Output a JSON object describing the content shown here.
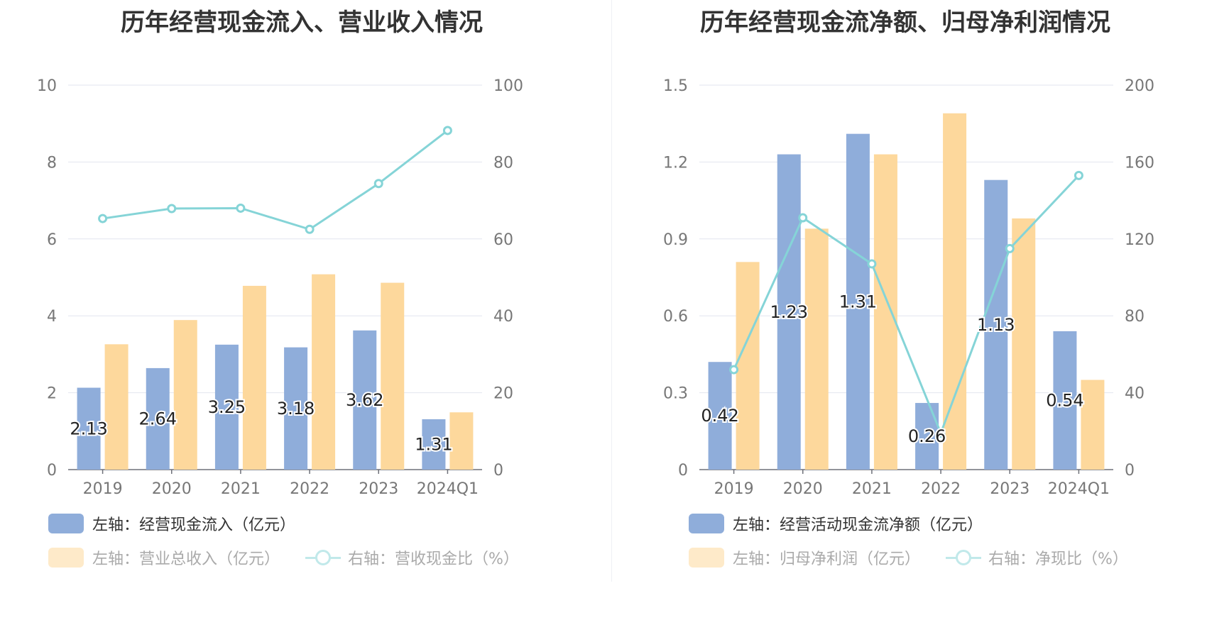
{
  "chart_data": [
    {
      "type": "bar",
      "title": "历年经营现金流入、营业收入情况",
      "categories": [
        "2019",
        "2020",
        "2021",
        "2022",
        "2023",
        "2024Q1"
      ],
      "left_axis": {
        "ylim": [
          0,
          10
        ],
        "ticks": [
          "0",
          "2",
          "4",
          "6",
          "8",
          "10"
        ]
      },
      "right_axis": {
        "ylim": [
          0,
          100
        ],
        "ticks": [
          "0",
          "20",
          "40",
          "60",
          "80",
          "100"
        ]
      },
      "grid": true,
      "legend_position": "bottom-left",
      "series": [
        {
          "name": "左轴：经营现金流入（亿元）",
          "kind": "bar",
          "axis": "left",
          "color": "#8fadda",
          "values": [
            2.13,
            2.64,
            3.25,
            3.18,
            3.62,
            1.31
          ],
          "labels": [
            "2.13",
            "2.64",
            "3.25",
            "3.18",
            "3.62",
            "1.31"
          ]
        },
        {
          "name": "左轴：营业总收入（亿元）",
          "kind": "bar",
          "axis": "left",
          "color": "#fdd89c",
          "values": [
            3.26,
            3.89,
            4.78,
            5.08,
            4.86,
            1.49
          ]
        },
        {
          "name": "右轴：营收现金比（%）",
          "kind": "line",
          "axis": "right",
          "color": "#85d4d7",
          "values": [
            65.3,
            67.9,
            68.0,
            62.5,
            74.4,
            88.2
          ]
        }
      ]
    },
    {
      "type": "bar",
      "title": "历年经营现金流净额、归母净利润情况",
      "categories": [
        "2019",
        "2020",
        "2021",
        "2022",
        "2023",
        "2024Q1"
      ],
      "left_axis": {
        "ylim": [
          0,
          1.5
        ],
        "ticks": [
          "0",
          "0.3",
          "0.6",
          "0.9",
          "1.2",
          "1.5"
        ]
      },
      "right_axis": {
        "ylim": [
          0,
          200
        ],
        "ticks": [
          "0",
          "40",
          "80",
          "120",
          "160",
          "200"
        ]
      },
      "grid": true,
      "legend_position": "bottom-left",
      "series": [
        {
          "name": "左轴：经营活动现金流净额（亿元）",
          "kind": "bar",
          "axis": "left",
          "color": "#8fadda",
          "values": [
            0.42,
            1.23,
            1.31,
            0.26,
            1.13,
            0.54
          ],
          "labels": [
            "0.42",
            "1.23",
            "1.31",
            "0.26",
            "1.13",
            "0.54"
          ]
        },
        {
          "name": "左轴：归母净利润（亿元）",
          "kind": "bar",
          "axis": "left",
          "color": "#fdd89c",
          "values": [
            0.81,
            0.94,
            1.23,
            1.39,
            0.98,
            0.35
          ]
        },
        {
          "name": "右轴：净现比（%）",
          "kind": "line",
          "axis": "right",
          "color": "#85d4d7",
          "values": [
            52,
            131,
            107,
            19,
            115,
            153
          ]
        }
      ]
    }
  ]
}
